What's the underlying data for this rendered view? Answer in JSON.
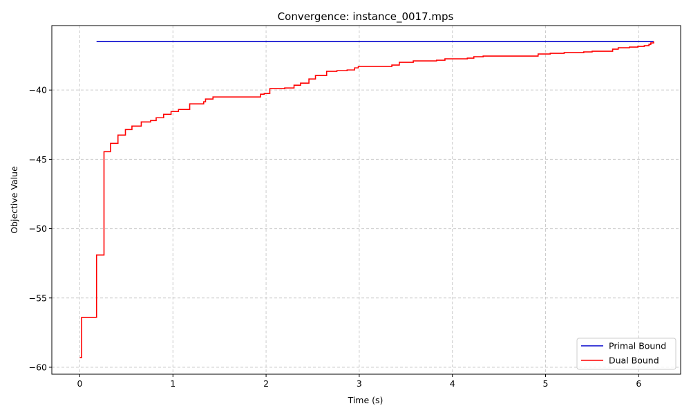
{
  "chart_data": {
    "type": "line",
    "title": "Convergence: instance_0017.mps",
    "xlabel": "Time (s)",
    "ylabel": "Objective Value",
    "xlim": [
      -0.3,
      6.45
    ],
    "ylim": [
      -60.5,
      -35.35
    ],
    "xticks": [
      0,
      1,
      2,
      3,
      4,
      5,
      6
    ],
    "yticks": [
      -60,
      -55,
      -50,
      -45,
      -40
    ],
    "grid": true,
    "legend_position": "lower-right",
    "series": [
      {
        "name": "Primal Bound",
        "color": "#0000cc",
        "step": false,
        "points": [
          [
            0.18,
            -36.5
          ],
          [
            6.16,
            -36.5
          ]
        ]
      },
      {
        "name": "Dual Bound",
        "color": "#ff0000",
        "step": true,
        "points": [
          [
            0.0,
            -59.3
          ],
          [
            0.02,
            -56.4
          ],
          [
            0.18,
            -51.9
          ],
          [
            0.26,
            -44.45
          ],
          [
            0.33,
            -43.85
          ],
          [
            0.41,
            -43.25
          ],
          [
            0.49,
            -42.85
          ],
          [
            0.56,
            -42.6
          ],
          [
            0.66,
            -42.3
          ],
          [
            0.76,
            -42.2
          ],
          [
            0.82,
            -42.0
          ],
          [
            0.9,
            -41.75
          ],
          [
            0.98,
            -41.55
          ],
          [
            1.06,
            -41.4
          ],
          [
            1.18,
            -41.0
          ],
          [
            1.33,
            -40.85
          ],
          [
            1.35,
            -40.65
          ],
          [
            1.43,
            -40.5
          ],
          [
            1.94,
            -40.3
          ],
          [
            1.98,
            -40.25
          ],
          [
            2.04,
            -39.9
          ],
          [
            2.2,
            -39.85
          ],
          [
            2.3,
            -39.65
          ],
          [
            2.37,
            -39.5
          ],
          [
            2.46,
            -39.2
          ],
          [
            2.53,
            -38.95
          ],
          [
            2.65,
            -38.65
          ],
          [
            2.76,
            -38.6
          ],
          [
            2.87,
            -38.55
          ],
          [
            2.95,
            -38.4
          ],
          [
            2.99,
            -38.3
          ],
          [
            3.35,
            -38.2
          ],
          [
            3.43,
            -38.0
          ],
          [
            3.58,
            -37.9
          ],
          [
            3.83,
            -37.85
          ],
          [
            3.92,
            -37.75
          ],
          [
            4.16,
            -37.7
          ],
          [
            4.23,
            -37.6
          ],
          [
            4.33,
            -37.55
          ],
          [
            4.92,
            -37.4
          ],
          [
            5.05,
            -37.35
          ],
          [
            5.2,
            -37.3
          ],
          [
            5.41,
            -37.25
          ],
          [
            5.5,
            -37.2
          ],
          [
            5.72,
            -37.05
          ],
          [
            5.78,
            -36.95
          ],
          [
            5.9,
            -36.9
          ],
          [
            5.99,
            -36.85
          ],
          [
            6.06,
            -36.8
          ],
          [
            6.11,
            -36.7
          ],
          [
            6.13,
            -36.6
          ],
          [
            6.16,
            -36.5
          ]
        ]
      }
    ]
  }
}
